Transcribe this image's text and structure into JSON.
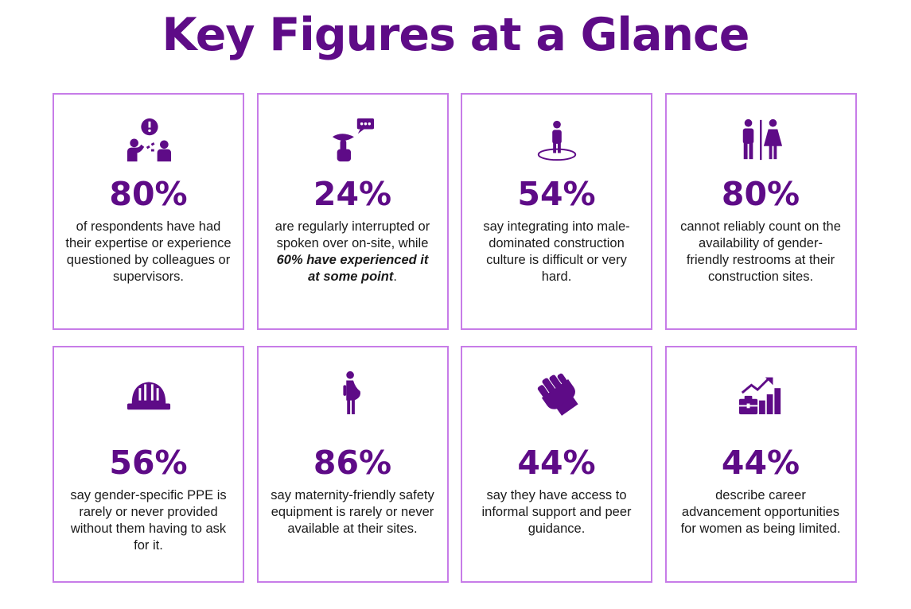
{
  "title": "Key Figures at a Glance",
  "colors": {
    "accent": "#5e0b87",
    "border": "#c77ce8"
  },
  "cards": [
    {
      "icon": "questioning-people-icon",
      "stat": "80%",
      "text": "of respondents have had their expertise or experience questioned by colleagues or supervisors."
    },
    {
      "icon": "interrupted-speech-icon",
      "stat": "24%",
      "text_before": "are regularly interrupted or spoken over on-site, while ",
      "text_emph": "60% have experienced it at some point",
      "text_after": "."
    },
    {
      "icon": "person-in-circle-icon",
      "stat": "54%",
      "text": "say integrating into male-dominated construction culture is difficult or very hard."
    },
    {
      "icon": "restroom-icon",
      "stat": "80%",
      "text": "cannot reliably count on the availability of gender-friendly restrooms at their construction sites."
    },
    {
      "icon": "hard-hat-icon",
      "stat": "56%",
      "text": "say gender-specific PPE is rarely or never provided without them having to ask for it."
    },
    {
      "icon": "pregnant-woman-icon",
      "stat": "86%",
      "text": "say maternity-friendly safety equipment is rarely or never available at their sites."
    },
    {
      "icon": "raised-fist-icon",
      "stat": "44%",
      "text": "say they have access to informal support and peer guidance."
    },
    {
      "icon": "career-growth-icon",
      "stat": "44%",
      "text": "describe career advancement opportunities for women as being limited."
    }
  ]
}
